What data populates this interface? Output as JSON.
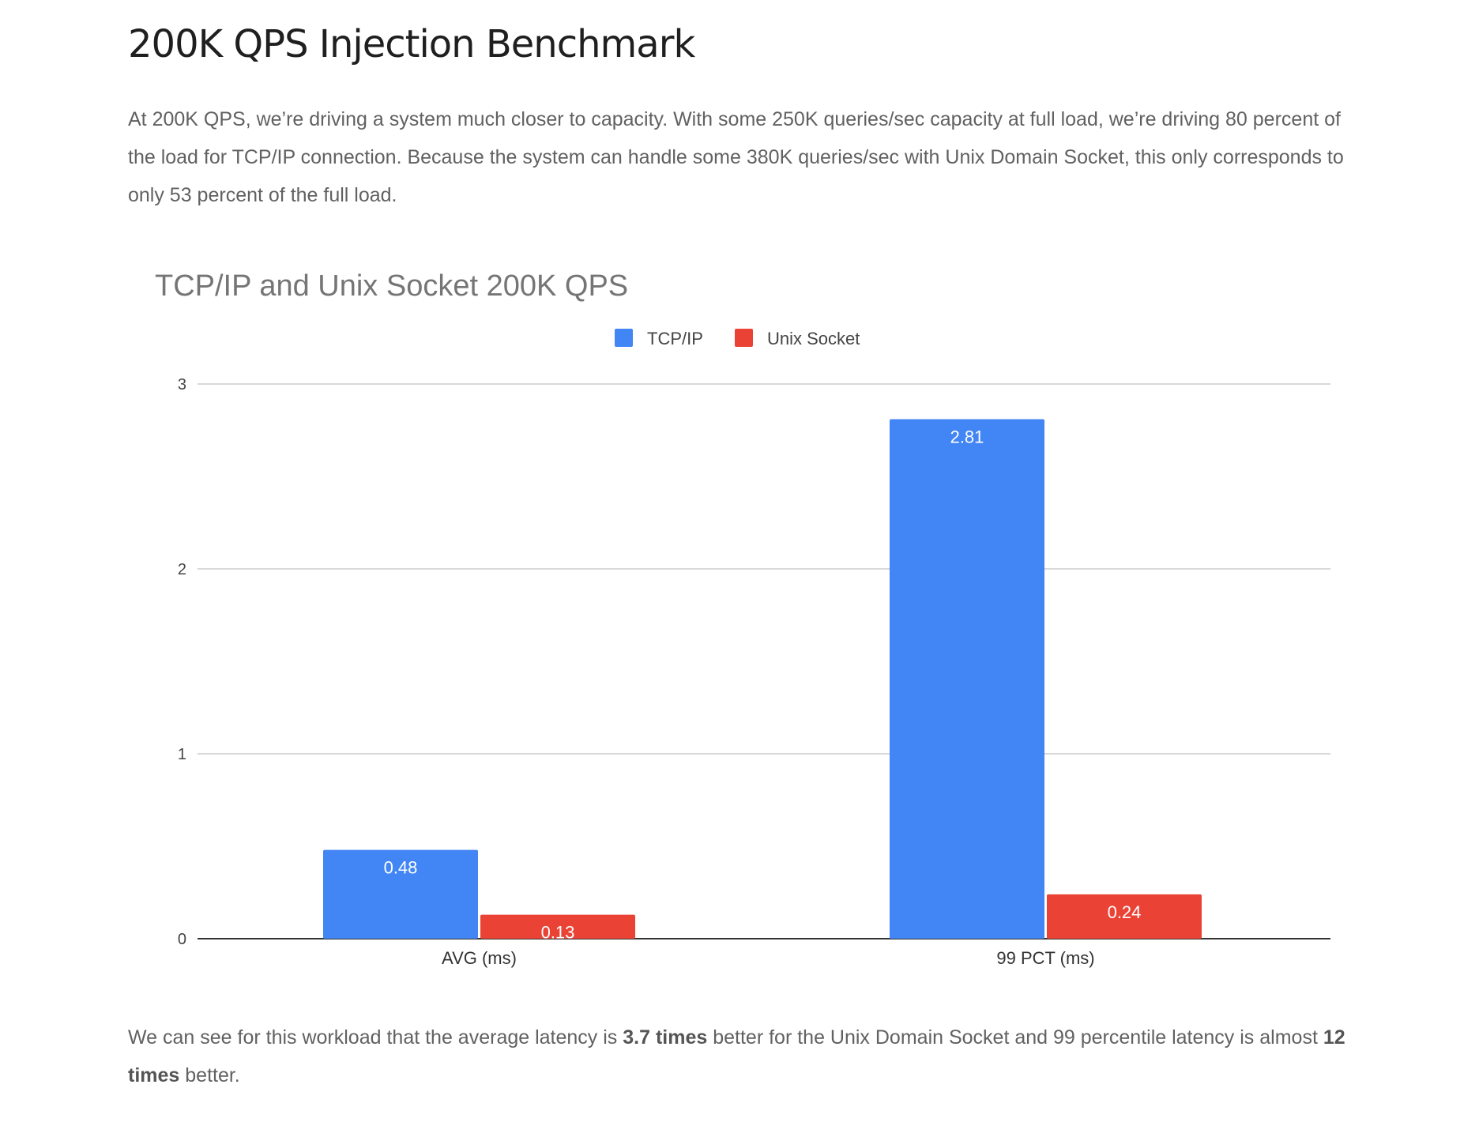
{
  "heading": "200K QPS Injection Benchmark",
  "intro": "At 200K QPS, we’re driving a system much closer to capacity. With some 250K queries/sec capacity at full load, we’re driving 80 percent of the load for TCP/IP connection. Because the system can handle some 380K queries/sec with Unix Domain Socket, this only corresponds to only 53 percent of the full load.",
  "conclusion": {
    "part1": "We can see for this workload that the average latency is ",
    "bold1": "3.7 times",
    "part2": " better for the Unix Domain Socket and 99 percentile latency is almost ",
    "bold2": "12 times",
    "part3": " better."
  },
  "colors": {
    "tcp": "#4285F4",
    "unix": "#EA4335"
  },
  "chart_data": {
    "type": "bar",
    "title": "TCP/IP and Unix Socket 200K QPS",
    "categories": [
      "AVG (ms)",
      "99 PCT (ms)"
    ],
    "series": [
      {
        "name": "TCP/IP",
        "values": [
          0.48,
          2.81
        ]
      },
      {
        "name": "Unix Socket",
        "values": [
          0.13,
          0.24
        ]
      }
    ],
    "yticks": [
      "0",
      "1",
      "2",
      "3"
    ],
    "ylim": [
      0,
      3
    ],
    "xlabel": "",
    "ylabel": "",
    "grid": true,
    "legend": "top-center"
  }
}
